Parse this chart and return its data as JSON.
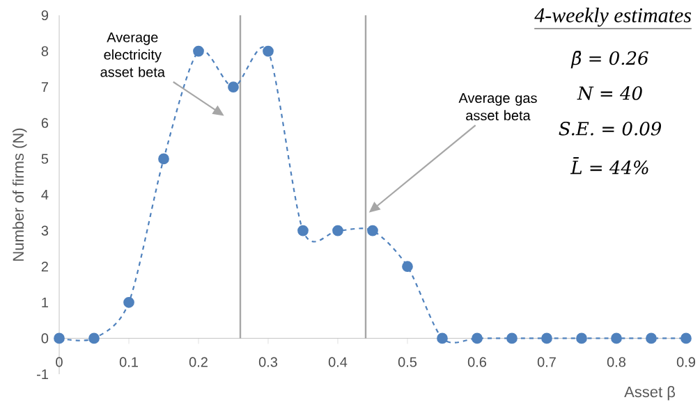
{
  "chart_data": {
    "type": "line",
    "xlabel": "Asset β",
    "ylabel": "Number of firms (N)",
    "x": [
      0,
      0.05,
      0.1,
      0.15,
      0.2,
      0.25,
      0.3,
      0.35,
      0.4,
      0.45,
      0.5,
      0.55,
      0.6,
      0.65,
      0.7,
      0.75,
      0.8,
      0.85,
      0.9
    ],
    "series": [
      {
        "color": "#4f81bd",
        "values": [
          0,
          0,
          1,
          5,
          8,
          7,
          8,
          3,
          3,
          3,
          2,
          0,
          0,
          0,
          0,
          0,
          0,
          0,
          0
        ]
      }
    ],
    "xlim": [
      0,
      0.9
    ],
    "ylim": [
      -1,
      9
    ],
    "xticks": [
      {
        "value": 0,
        "label": "0"
      },
      0.1,
      0.2,
      0.3,
      0.4,
      0.5,
      0.6,
      0.7,
      0.8,
      0.9
    ],
    "yticks": [
      -1,
      0,
      1,
      2,
      3,
      4,
      5,
      6,
      7,
      8,
      9
    ],
    "marker": "circle",
    "line_style": "dashed",
    "grid": false,
    "legend": false,
    "ref_lines": [
      {
        "axis": "x",
        "value": 0.26,
        "color": "#a6a6a6"
      },
      {
        "axis": "x",
        "value": 0.44,
        "color": "#a6a6a6"
      }
    ],
    "annotations": [
      "Average electricity asset beta",
      "Average gas asset beta",
      "4-weekly estimates",
      "β̄ = 0.26",
      "N = 40",
      "S.E. = 0.09",
      "L̄ = 44%"
    ]
  }
}
